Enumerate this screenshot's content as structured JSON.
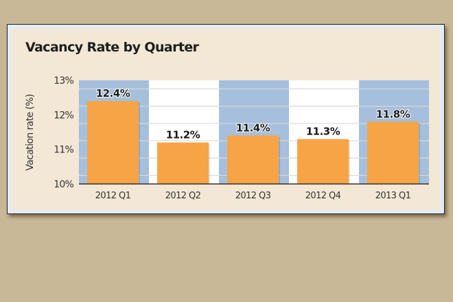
{
  "chart_data": {
    "type": "bar",
    "title": "Vacancy Rate by Quarter",
    "xlabel": "",
    "ylabel": "Vacation rate (%)",
    "categories": [
      "2012 Q1",
      "2012 Q2",
      "2012 Q3",
      "2012 Q4",
      "2013 Q1"
    ],
    "values": [
      12.4,
      11.2,
      11.4,
      11.3,
      11.8
    ],
    "data_labels": [
      "12.4%",
      "11.2%",
      "11.4%",
      "11.3%",
      "11.8%"
    ],
    "ylim": [
      10,
      13
    ],
    "yticks": [
      10,
      11,
      12,
      13
    ],
    "ytick_labels": [
      "10%",
      "11%",
      "12%",
      "13%"
    ],
    "grid": true,
    "colors": {
      "bar": "#f7a446",
      "band_blue": "#a6bfdc",
      "band_white": "#ffffff",
      "grid": "#d9d9d9",
      "axis": "#333333"
    }
  }
}
